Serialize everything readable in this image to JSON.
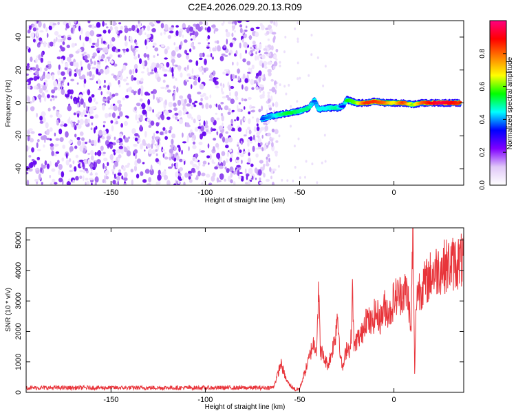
{
  "title": "C2E4.2026.029.20.13.R09",
  "chart_data": [
    {
      "type": "heatmap",
      "name": "spectrogram",
      "xlabel": "Height of straight line (km)",
      "ylabel": "Frequency (Hz)",
      "xlim": [
        -195,
        37
      ],
      "ylim": [
        -50,
        50
      ],
      "xticks": [
        -150,
        -100,
        -50,
        0
      ],
      "yticks": [
        -40,
        -20,
        0,
        20,
        40
      ],
      "colorbar": {
        "label": "Normalized spectral amplitude",
        "range": [
          0,
          1
        ],
        "ticks": [
          0.0,
          0.2,
          0.4,
          0.6,
          0.8
        ],
        "tick_labels": [
          "0.0",
          "0.2",
          "0.4",
          "0.6",
          "0.8"
        ],
        "colors": [
          "#ffffff",
          "#e0c8f8",
          "#8000ff",
          "#0000ff",
          "#00ffff",
          "#00ff00",
          "#ffff00",
          "#ff8000",
          "#ff0000",
          "#ff0080"
        ]
      },
      "noise_region_km": [
        -195,
        -65
      ],
      "signal_track": {
        "x": [
          -70,
          -65,
          -60,
          -55,
          -50,
          -45,
          -42,
          -40,
          -35,
          -30,
          -27,
          -25,
          -20,
          -15,
          -10,
          -5,
          0,
          5,
          10,
          15,
          20,
          25,
          30,
          35
        ],
        "freq_hz": [
          -10,
          -8,
          -7,
          -6,
          -5,
          -3,
          2,
          -4,
          -3,
          -3,
          -2,
          2,
          0,
          0,
          1,
          0,
          0,
          0,
          -1,
          0,
          0,
          0,
          0,
          0
        ],
        "amplitude": [
          0.35,
          0.4,
          0.5,
          0.55,
          0.5,
          0.5,
          0.35,
          0.45,
          0.45,
          0.5,
          0.3,
          0.55,
          0.6,
          0.85,
          0.85,
          0.8,
          0.65,
          0.85,
          0.6,
          0.8,
          0.9,
          0.95,
          0.9,
          0.85
        ]
      }
    },
    {
      "type": "line",
      "name": "snr",
      "xlabel": "Height of straight line (km)",
      "ylabel": "SNR (10 * v/v)",
      "xlim": [
        -195,
        37
      ],
      "ylim": [
        0,
        5400
      ],
      "xticks": [
        -150,
        -100,
        -50,
        0
      ],
      "yticks": [
        0,
        1000,
        2000,
        3000,
        4000,
        5000
      ],
      "color": "#e8343a",
      "series": [
        {
          "name": "SNR",
          "x": [
            -195,
            -70,
            -64,
            -62,
            -60,
            -57,
            -55,
            -52,
            -50,
            -47,
            -45,
            -43,
            -41,
            -40,
            -39,
            -37,
            -35,
            -33,
            -31,
            -30,
            -28,
            -27,
            -25,
            -23,
            -22,
            -21,
            -20,
            -17,
            -15,
            -12,
            -10,
            -7,
            -5,
            -2,
            0,
            3,
            5,
            7,
            8,
            9,
            10,
            11,
            12,
            15,
            17,
            20,
            25,
            30,
            35,
            37
          ],
          "y": [
            150,
            150,
            160,
            500,
            950,
            400,
            220,
            80,
            120,
            700,
            1100,
            1600,
            1500,
            3400,
            1400,
            1100,
            900,
            1300,
            1900,
            2600,
            1000,
            800,
            1500,
            1400,
            3200,
            1400,
            1700,
            1900,
            2500,
            2200,
            2600,
            2400,
            2800,
            2600,
            3100,
            3200,
            3300,
            3300,
            2900,
            1800,
            5400,
            600,
            3300,
            3500,
            3600,
            3900,
            4100,
            4200,
            4300,
            4300
          ]
        }
      ]
    }
  ]
}
